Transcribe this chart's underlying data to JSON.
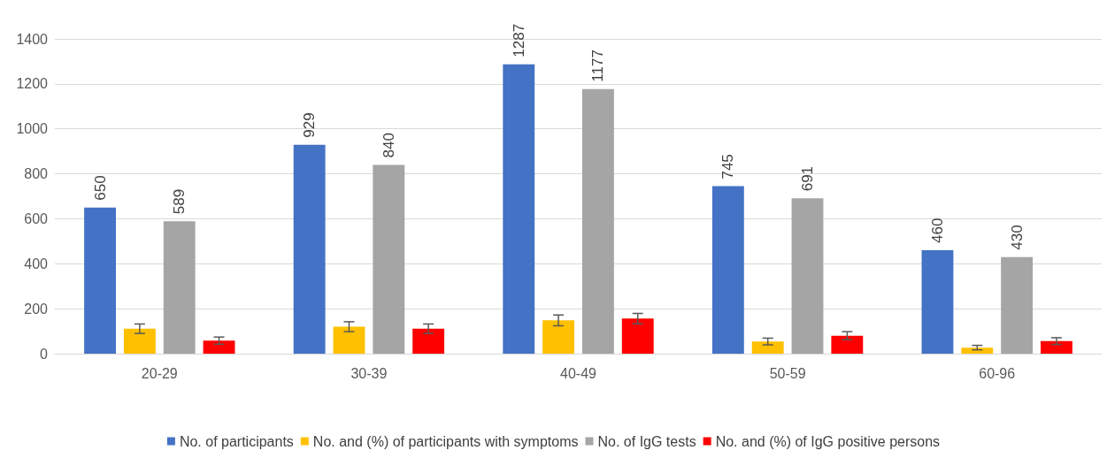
{
  "chart_data": {
    "type": "bar",
    "categories": [
      "20-29",
      "30-39",
      "40-49",
      "50-59",
      "60-96"
    ],
    "series": [
      {
        "name": "No. of participants",
        "color": "#4472c4",
        "values": [
          650,
          929,
          1287,
          745,
          460
        ],
        "value_labels": [
          "650",
          "929",
          "1287",
          "745",
          "460"
        ]
      },
      {
        "name": "No. and (%) of participants with symptoms",
        "color": "#ffc000",
        "values": [
          111,
          120,
          148,
          54,
          27
        ],
        "errors": [
          21,
          22,
          24,
          15,
          10
        ]
      },
      {
        "name": "No. of IgG tests",
        "color": "#a5a5a5",
        "values": [
          589,
          840,
          1177,
          691,
          430
        ],
        "value_labels": [
          "589",
          "840",
          "1177",
          "691",
          "430"
        ]
      },
      {
        "name": "No. and (%) of IgG positive persons",
        "color": "#ff0000",
        "values": [
          58,
          111,
          156,
          80,
          56
        ],
        "errors": [
          16,
          21,
          23,
          18,
          15
        ]
      }
    ],
    "ylim": [
      0,
      1400
    ],
    "yticks": [
      0,
      200,
      400,
      600,
      800,
      1000,
      1200,
      1400
    ],
    "grid": "y",
    "legend": "bottom"
  }
}
